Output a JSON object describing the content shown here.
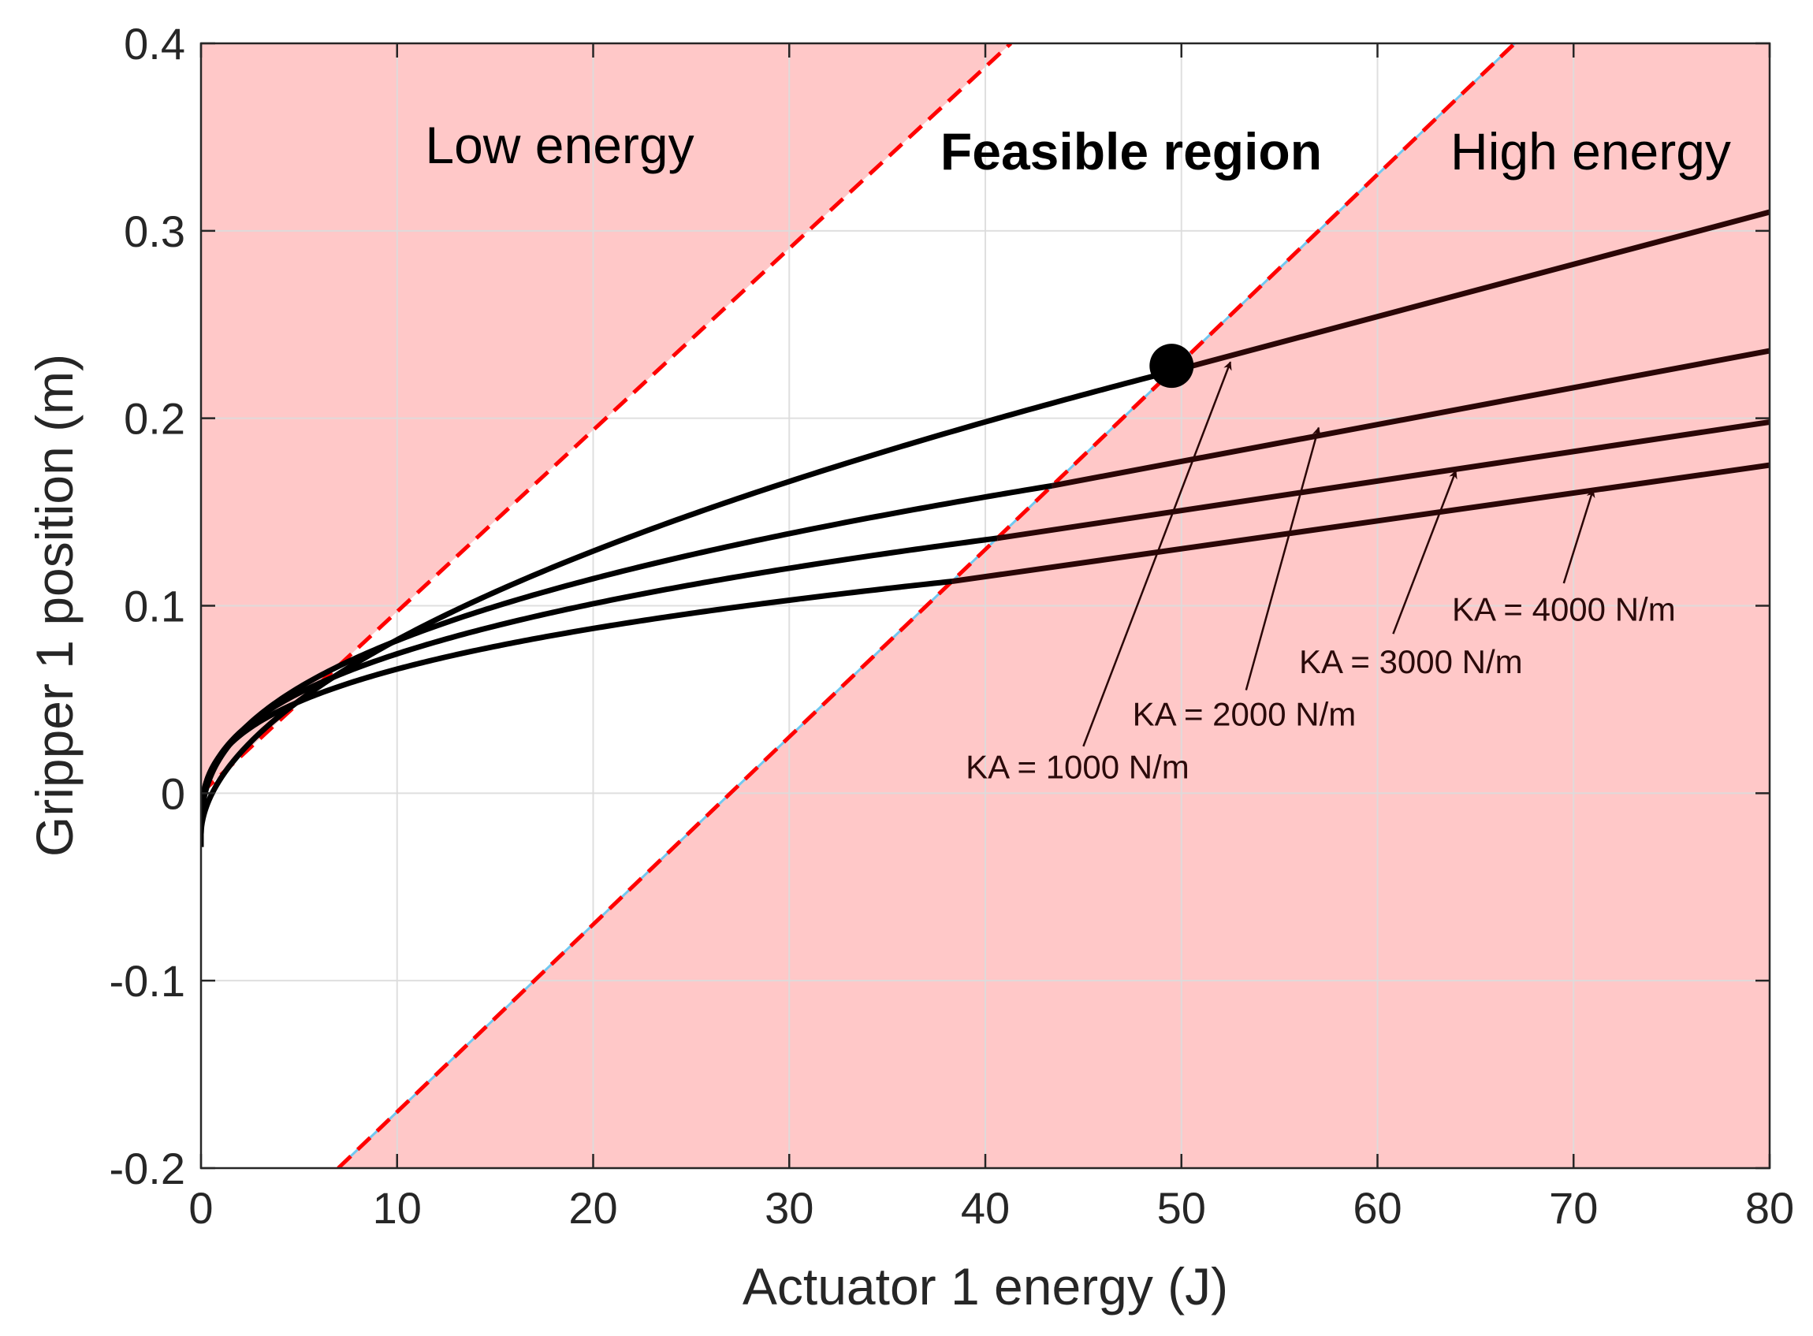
{
  "chart_data": {
    "type": "line",
    "xlabel": "Actuator 1 energy (J)",
    "ylabel": "Gripper 1 position (m)",
    "xlim": [
      0,
      80
    ],
    "ylim": [
      -0.2,
      0.4
    ],
    "grid": true,
    "xticks": [
      0,
      10,
      20,
      30,
      40,
      50,
      60,
      70,
      80
    ],
    "xtick_labels": [
      "0",
      "10",
      "20",
      "30",
      "40",
      "50",
      "60",
      "70",
      "80"
    ],
    "yticks": [
      -0.2,
      -0.1,
      0,
      0.1,
      0.2,
      0.3,
      0.4
    ],
    "ytick_labels": [
      "-0.2",
      "-0.1",
      "0",
      "0.1",
      "0.2",
      "0.3",
      "0.4"
    ],
    "region_labels": {
      "low": "Low energy",
      "feasible": "Feasible region",
      "high": "High energy"
    },
    "colors": {
      "infeasible_fill": "#ffc8c8",
      "boundary_dash": "#ff0000",
      "boundary_under": "#70c8f0",
      "curve": "#000000",
      "curve_high": "#2a0606",
      "arrow": "#2a0606",
      "grid": "#dcdcdc"
    },
    "boundaries": [
      {
        "name": "low-energy-boundary",
        "points": [
          [
            0,
            0
          ],
          [
            41.3,
            0.4
          ]
        ]
      },
      {
        "name": "high-energy-boundary",
        "points": [
          [
            7,
            -0.2
          ],
          [
            67,
            0.4
          ]
        ]
      }
    ],
    "series": [
      {
        "name": "KA = 1000 N/m",
        "exponent": 0.542,
        "intersect_x": 49.5,
        "end": [
          80,
          0.31
        ],
        "marker": [
          49.5,
          0.228
        ]
      },
      {
        "name": "KA = 2000 N/m",
        "exponent": 0.4,
        "intersect_x": 43.4,
        "end": [
          80,
          0.236
        ]
      },
      {
        "name": "KA = 3000 N/m",
        "exponent": 0.353,
        "intersect_x": 40.6,
        "end": [
          80,
          0.198
        ]
      },
      {
        "name": "KA = 4000 N/m",
        "exponent": 0.317,
        "intersect_x": 38.3,
        "end": [
          80,
          0.175
        ]
      }
    ],
    "curve_start": [
      0,
      -0.022
    ],
    "annotations": [
      {
        "text": "KA = 1000 N/m",
        "label_at": [
          39,
          0.008
        ],
        "tail": [
          45,
          0.025
        ],
        "head": [
          52.5,
          0.23
        ]
      },
      {
        "text": "KA = 2000 N/m",
        "label_at": [
          47.5,
          0.036
        ],
        "tail": [
          53.3,
          0.055
        ],
        "head": [
          57,
          0.195
        ]
      },
      {
        "text": "KA = 3000 N/m",
        "label_at": [
          56,
          0.064
        ],
        "tail": [
          60.8,
          0.085
        ],
        "head": [
          64,
          0.172
        ]
      },
      {
        "text": "KA = 4000 N/m",
        "label_at": [
          63.8,
          0.092
        ],
        "tail": [
          69.5,
          0.112
        ],
        "head": [
          71,
          0.162
        ]
      }
    ]
  }
}
